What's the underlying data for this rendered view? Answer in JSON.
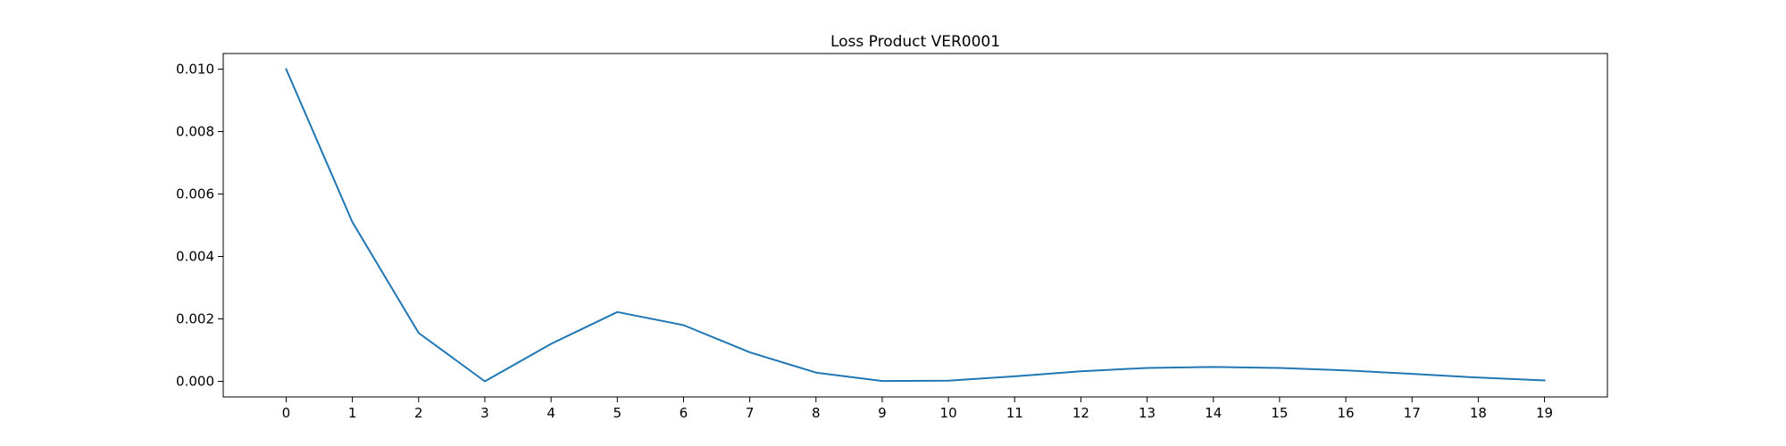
{
  "chart_data": {
    "type": "line",
    "title": "Loss Product VER0001",
    "xlabel": "",
    "ylabel": "",
    "x": [
      0,
      1,
      2,
      3,
      4,
      5,
      6,
      7,
      8,
      9,
      10,
      11,
      12,
      13,
      14,
      15,
      16,
      17,
      18,
      19
    ],
    "x_tick_labels": [
      "0",
      "1",
      "2",
      "3",
      "4",
      "5",
      "6",
      "7",
      "8",
      "9",
      "10",
      "11",
      "12",
      "13",
      "14",
      "15",
      "16",
      "17",
      "18",
      "19"
    ],
    "y_ticks": [
      0.0,
      0.002,
      0.004,
      0.006,
      0.008,
      0.01
    ],
    "y_tick_labels": [
      "0.000",
      "0.002",
      "0.004",
      "0.006",
      "0.008",
      "0.010"
    ],
    "xlim": [
      -0.95,
      19.95
    ],
    "ylim": [
      -0.0005,
      0.0105
    ],
    "grid": false,
    "series": [
      {
        "values": [
          0.01,
          0.0051,
          0.00155,
          0.0,
          0.0012,
          0.00222,
          0.0018,
          0.00093,
          0.00028,
          1e-05,
          2e-05,
          0.00016,
          0.00032,
          0.00043,
          0.00046,
          0.00043,
          0.00035,
          0.00024,
          0.00012,
          3e-05
        ],
        "color": "#1f77b4"
      }
    ]
  }
}
